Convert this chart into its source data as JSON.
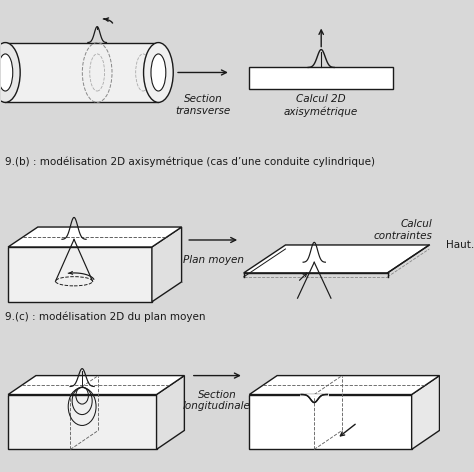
{
  "bg_color": "#d8d8d8",
  "line_color": "#1a1a1a",
  "text_color": "#1a1a1a",
  "label_b": "9.(b) : modélisation 2D axisymétrique (cas d’une conduite cylindrique)",
  "label_c": "9.(c) : modélisation 2D du plan moyen",
  "section_transverse": "Section\ntransverse",
  "calcul_2d": "Calcul 2D\naxisymétrique",
  "plan_moyen": "Plan moyen",
  "calcul_contraintes": "Calcul\ncontraintes",
  "hauteur": "Haut.",
  "section_longitudinale": "Section\nlongitudinale",
  "font_size_label": 7.5,
  "font_size_small": 7.5,
  "font_size_caption": 7.5
}
